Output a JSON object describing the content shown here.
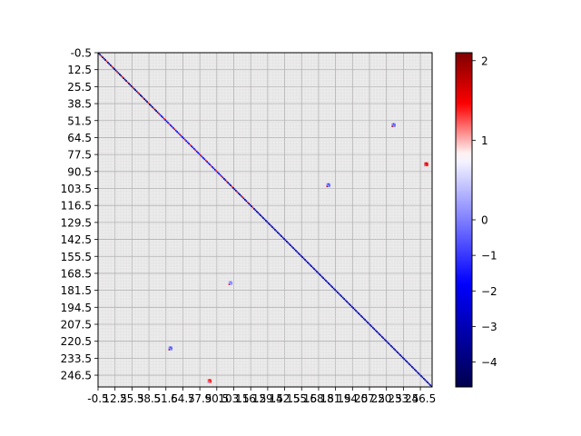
{
  "chart_data": {
    "type": "heatmap",
    "n_rows": 256,
    "n_cols": 256,
    "x_tick_labels": [
      "-0.5",
      "12.5",
      "25.5",
      "38.5",
      "51.5",
      "64.5",
      "77.5",
      "90.5",
      "103.5",
      "116.5",
      "129.5",
      "142.5",
      "155.5",
      "168.5",
      "181.5",
      "194.5",
      "207.5",
      "220.5",
      "233.5",
      "246.5"
    ],
    "y_tick_labels": [
      "-0.5",
      "12.5",
      "25.5",
      "38.5",
      "51.5",
      "64.5",
      "77.5",
      "90.5",
      "103.5",
      "116.5",
      "129.5",
      "142.5",
      "155.5",
      "168.5",
      "181.5",
      "194.5",
      "207.5",
      "220.5",
      "233.5",
      "246.5"
    ],
    "xlim": [
      -0.5,
      255.5
    ],
    "ylim": [
      255.5,
      -0.5
    ],
    "grid": true,
    "colormap": "seismic",
    "colorbar": {
      "range": [
        -4.7,
        2.1
      ],
      "ticks": [
        2,
        1,
        0,
        -1,
        -2,
        -3,
        -4
      ],
      "tick_labels": [
        "2",
        "1",
        "0",
        "−1",
        "−2",
        "−3",
        "−4"
      ]
    },
    "background_value": 0.0,
    "diagonal": {
      "start": 0,
      "end": 255,
      "segments": [
        {
          "from": 0,
          "to": 45,
          "value": -4.0
        },
        {
          "from": 46,
          "to": 95,
          "value": -2.5
        },
        {
          "from": 96,
          "to": 255,
          "value": -3.5
        }
      ],
      "red_every": 4,
      "red_value": 1.2
    },
    "off_diagonal_blocks": [
      {
        "row": 55,
        "col": 226,
        "value": -2.0
      },
      {
        "row": 85,
        "col": 251,
        "value": 1.5
      },
      {
        "row": 101,
        "col": 176,
        "value": -2.0
      },
      {
        "row": 176,
        "col": 101,
        "value": -1.5
      },
      {
        "row": 226,
        "col": 55,
        "value": -2.0
      },
      {
        "row": 251,
        "col": 85,
        "value": 1.2
      }
    ],
    "colors": {
      "seismic_low": "#00004d",
      "seismic_blue": "#0000ff",
      "seismic_white": "#ffffff",
      "seismic_red": "#ff0000",
      "seismic_high": "#7f0000",
      "background": "#f3f1f2"
    }
  }
}
